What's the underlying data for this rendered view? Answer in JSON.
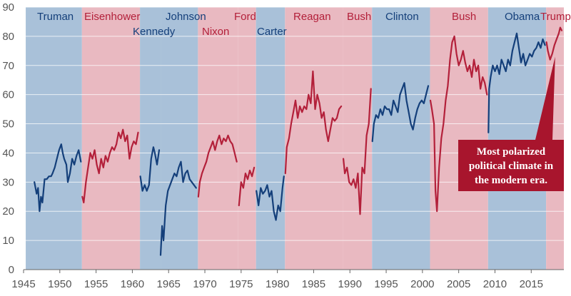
{
  "chart_data": {
    "type": "line",
    "title": "",
    "xlabel": "",
    "ylabel": "",
    "xlim": [
      1945,
      2019.5
    ],
    "ylim": [
      0,
      90
    ],
    "x_ticks": [
      "1945",
      "1950",
      "1955",
      "1960",
      "1965",
      "1970",
      "1975",
      "1980",
      "1985",
      "1990",
      "1995",
      "2000",
      "2005",
      "2010",
      "2015"
    ],
    "y_ticks": [
      "0",
      "10",
      "20",
      "30",
      "40",
      "50",
      "60",
      "70",
      "80",
      "90"
    ],
    "grid": "horizontal",
    "colors": {
      "democrat_line": "#143f7a",
      "republican_line": "#b3203a",
      "democrat_band": "#a9c1d9",
      "republican_band": "#e9b9c1",
      "annotation_box": "#a8152d"
    },
    "presidencies": [
      {
        "name": "Truman",
        "party": "D",
        "start": 1945.3,
        "end": 1953.05
      },
      {
        "name": "Eisenhower",
        "party": "R",
        "start": 1953.05,
        "end": 1961.05
      },
      {
        "name": "Kennedy",
        "party": "D",
        "start": 1961.05,
        "end": 1963.9
      },
      {
        "name": "Johnson",
        "party": "D",
        "start": 1963.9,
        "end": 1969.05
      },
      {
        "name": "Nixon",
        "party": "R",
        "start": 1969.05,
        "end": 1974.6
      },
      {
        "name": "Ford",
        "party": "R",
        "start": 1974.6,
        "end": 1977.05
      },
      {
        "name": "Carter",
        "party": "D",
        "start": 1977.05,
        "end": 1981.05
      },
      {
        "name": "Reagan",
        "party": "R",
        "start": 1981.05,
        "end": 1989.05
      },
      {
        "name": "Bush",
        "party": "R",
        "start": 1989.05,
        "end": 1993.05
      },
      {
        "name": "Clinton",
        "party": "D",
        "start": 1993.05,
        "end": 2001.05
      },
      {
        "name": "Bush",
        "party": "R",
        "start": 2001.05,
        "end": 2009.05
      },
      {
        "name": "Obama",
        "party": "D",
        "start": 2009.05,
        "end": 2017.05
      },
      {
        "name": "Trump",
        "party": "R",
        "start": 2017.05,
        "end": 2019.5
      }
    ],
    "series": [
      {
        "party": "D",
        "x": [
          1946.5,
          1946.8,
          1947.0,
          1947.2,
          1947.4,
          1947.6,
          1947.9,
          1948.2,
          1948.5,
          1948.8,
          1949.0,
          1949.3,
          1949.6,
          1949.9,
          1950.2,
          1950.4,
          1950.6,
          1950.9,
          1951.1,
          1951.4,
          1951.7,
          1952.0,
          1952.3,
          1952.6,
          1952.9
        ],
        "y": [
          30,
          26,
          28,
          20,
          25,
          23,
          31,
          31,
          32,
          32,
          33,
          35,
          38,
          41,
          43,
          40,
          38,
          36,
          30,
          33,
          38,
          36,
          39,
          41,
          37
        ]
      },
      {
        "party": "R",
        "x": [
          1953.1,
          1953.3,
          1953.6,
          1953.9,
          1954.2,
          1954.5,
          1954.8,
          1955.1,
          1955.4,
          1955.7,
          1956.0,
          1956.3,
          1956.6,
          1956.9,
          1957.2,
          1957.5,
          1957.8,
          1958.1,
          1958.4,
          1958.7,
          1959.0,
          1959.3,
          1959.6,
          1959.9,
          1960.2,
          1960.5,
          1960.8
        ],
        "y": [
          25,
          23,
          30,
          35,
          40,
          38,
          41,
          36,
          33,
          38,
          35,
          39,
          37,
          40,
          42,
          41,
          43,
          47,
          45,
          48,
          44,
          46,
          38,
          42,
          44,
          43,
          47
        ]
      },
      {
        "party": "D",
        "x": [
          1961.1,
          1961.4,
          1961.7,
          1962.0,
          1962.3,
          1962.6,
          1962.9,
          1963.1,
          1963.4,
          1963.7
        ],
        "y": [
          32,
          27,
          29,
          27,
          29,
          38,
          42,
          40,
          36,
          41
        ]
      },
      {
        "party": "D",
        "x": [
          1963.9,
          1964.1,
          1964.3,
          1964.6,
          1964.9,
          1965.2,
          1965.5,
          1965.8,
          1966.1,
          1966.4,
          1966.7,
          1967.0,
          1967.3,
          1967.6,
          1967.9,
          1968.2,
          1968.5,
          1968.8
        ],
        "y": [
          5,
          15,
          10,
          22,
          27,
          29,
          31,
          33,
          32,
          35,
          37,
          30,
          33,
          34,
          31,
          30,
          29,
          28
        ]
      },
      {
        "party": "R",
        "x": [
          1969.1,
          1969.3,
          1969.6,
          1969.9,
          1970.2,
          1970.5,
          1970.8,
          1971.1,
          1971.4,
          1971.7,
          1972.0,
          1972.3,
          1972.6,
          1972.9,
          1973.2,
          1973.5,
          1973.8,
          1974.1,
          1974.4
        ],
        "y": [
          25,
          30,
          33,
          35,
          37,
          40,
          42,
          44,
          41,
          44,
          46,
          43,
          45,
          44,
          46,
          44,
          43,
          40,
          37
        ]
      },
      {
        "party": "R",
        "x": [
          1974.7,
          1975.0,
          1975.3,
          1975.6,
          1975.9,
          1976.2,
          1976.5,
          1976.8
        ],
        "y": [
          22,
          30,
          28,
          33,
          31,
          34,
          32,
          35
        ]
      },
      {
        "party": "D",
        "x": [
          1977.1,
          1977.4,
          1977.7,
          1978.0,
          1978.3,
          1978.6,
          1978.9,
          1979.2,
          1979.5,
          1979.8,
          1980.1,
          1980.4,
          1980.7,
          1980.9
        ],
        "y": [
          27,
          22,
          28,
          26,
          27,
          29,
          25,
          27,
          20,
          17,
          22,
          20,
          28,
          32
        ]
      },
      {
        "party": "R",
        "x": [
          1981.1,
          1981.3,
          1981.6,
          1981.9,
          1982.2,
          1982.5,
          1982.8,
          1983.1,
          1983.4,
          1983.7,
          1984.0,
          1984.3,
          1984.6,
          1984.9,
          1985.2,
          1985.5,
          1985.8,
          1986.1,
          1986.4,
          1986.7,
          1987.0,
          1987.3,
          1987.6,
          1987.9,
          1988.2,
          1988.5,
          1988.8
        ],
        "y": [
          33,
          42,
          45,
          50,
          54,
          58,
          52,
          56,
          54,
          56,
          55,
          60,
          57,
          68,
          55,
          60,
          57,
          52,
          54,
          48,
          44,
          48,
          52,
          51,
          52,
          55,
          56
        ]
      },
      {
        "party": "R",
        "x": [
          1989.1,
          1989.3,
          1989.6,
          1989.9,
          1990.2,
          1990.5,
          1990.8,
          1991.1,
          1991.4,
          1991.7,
          1992.0,
          1992.3,
          1992.6,
          1992.9
        ],
        "y": [
          38,
          33,
          35,
          30,
          29,
          31,
          28,
          33,
          19,
          35,
          33,
          46,
          50,
          62
        ]
      },
      {
        "party": "D",
        "x": [
          1993.1,
          1993.3,
          1993.6,
          1993.9,
          1994.2,
          1994.5,
          1994.8,
          1995.1,
          1995.4,
          1995.7,
          1996.0,
          1996.3,
          1996.6,
          1996.9,
          1997.2,
          1997.5,
          1997.8,
          1998.1,
          1998.4,
          1998.7,
          1999.0,
          1999.3,
          1999.6,
          1999.9,
          2000.2,
          2000.5,
          2000.8
        ],
        "y": [
          44,
          50,
          53,
          52,
          55,
          53,
          56,
          55,
          55,
          53,
          58,
          56,
          54,
          60,
          62,
          64,
          58,
          54,
          50,
          48,
          52,
          55,
          57,
          58,
          57,
          60,
          63
        ]
      },
      {
        "party": "R",
        "x": [
          2001.1,
          2001.3,
          2001.6,
          2001.8,
          2002.0,
          2002.3,
          2002.6,
          2002.9,
          2003.2,
          2003.5,
          2003.8,
          2004.1,
          2004.4,
          2004.7,
          2005.0,
          2005.3,
          2005.6,
          2005.9,
          2006.2,
          2006.5,
          2006.8,
          2007.1,
          2007.4,
          2007.7,
          2008.0,
          2008.3,
          2008.6,
          2008.9
        ],
        "y": [
          58,
          55,
          50,
          27,
          20,
          35,
          45,
          50,
          58,
          63,
          72,
          78,
          80,
          74,
          70,
          72,
          75,
          71,
          68,
          70,
          66,
          72,
          68,
          70,
          62,
          66,
          64,
          60
        ]
      },
      {
        "party": "D",
        "x": [
          2009.1,
          2009.2,
          2009.4,
          2009.7,
          2010.0,
          2010.3,
          2010.6,
          2010.9,
          2011.2,
          2011.5,
          2011.8,
          2012.1,
          2012.4,
          2012.7,
          2013.0,
          2013.3,
          2013.6,
          2013.9,
          2014.2,
          2014.5,
          2014.8,
          2015.1,
          2015.4,
          2015.7,
          2016.0,
          2016.3,
          2016.6,
          2016.9
        ],
        "y": [
          47,
          62,
          66,
          70,
          68,
          70,
          67,
          72,
          70,
          68,
          72,
          70,
          75,
          78,
          81,
          76,
          71,
          74,
          70,
          72,
          74,
          73,
          75,
          76,
          78,
          76,
          79,
          77
        ]
      },
      {
        "party": "R",
        "x": [
          2017.1,
          2017.3,
          2017.6,
          2017.9,
          2018.2,
          2018.5,
          2018.8,
          2019.0,
          2019.2
        ],
        "y": [
          78,
          75,
          72,
          74,
          77,
          79,
          81,
          83,
          82
        ]
      }
    ],
    "annotation": {
      "lines": [
        "Most polarized",
        "political climate in",
        "the modern era."
      ],
      "arrow_to": [
        2018.3,
        73
      ]
    }
  }
}
